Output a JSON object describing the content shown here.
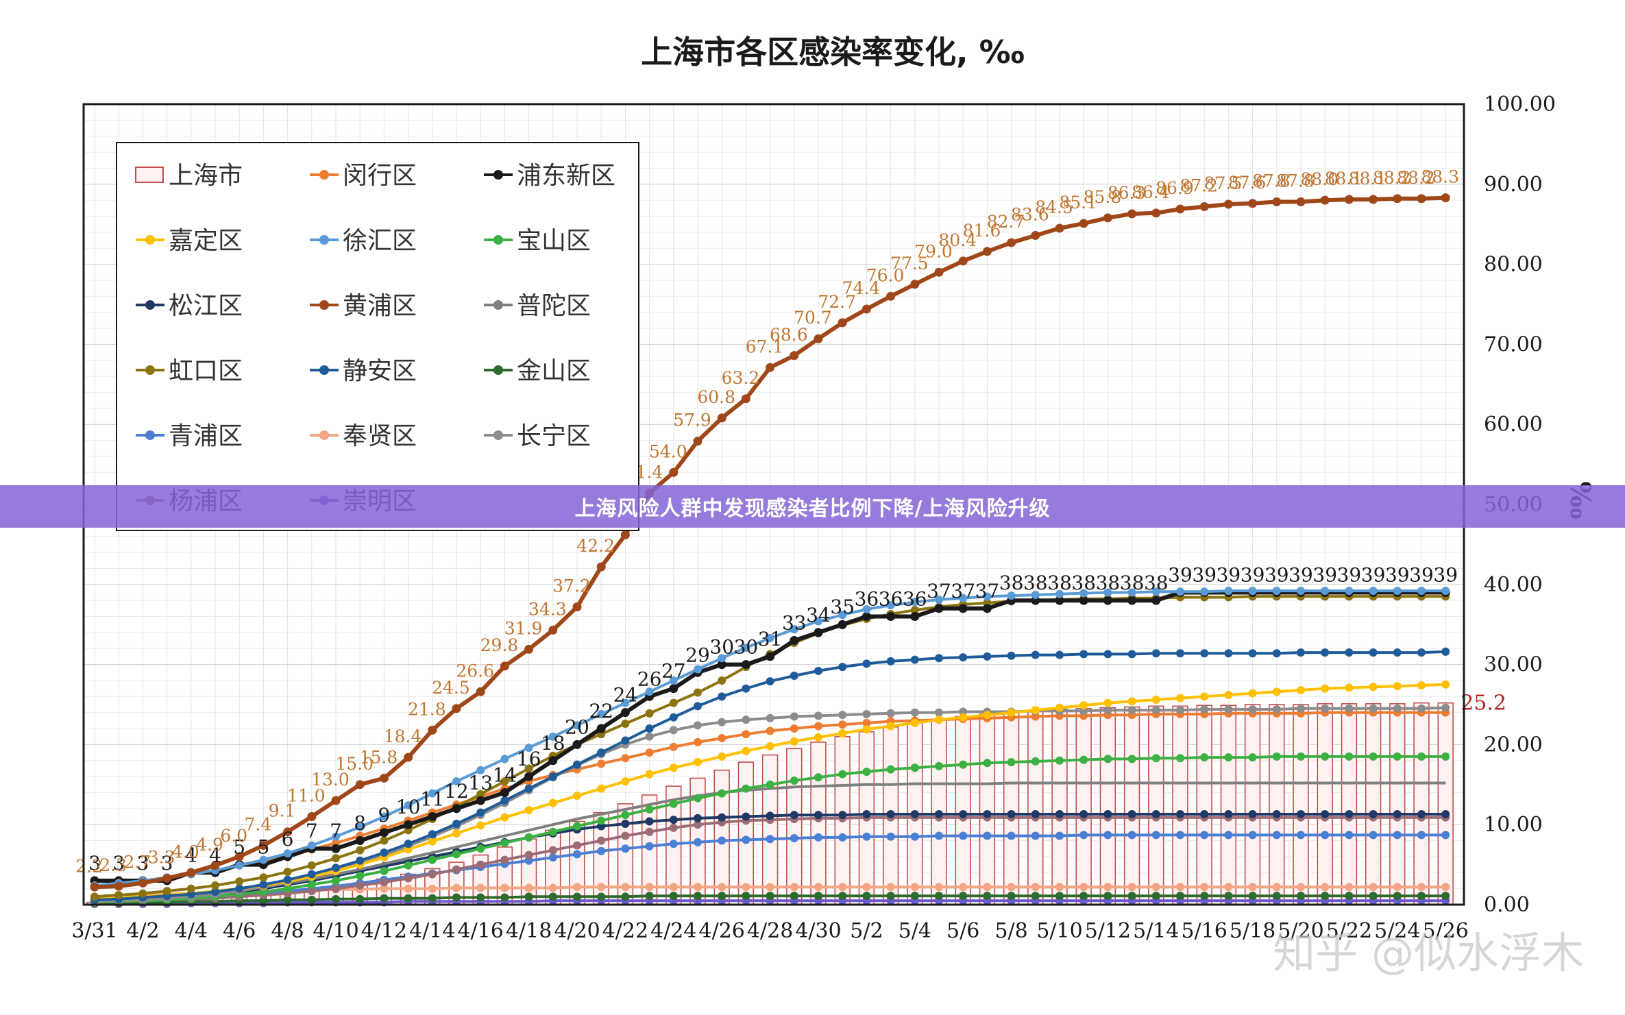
{
  "banner": {
    "text": "上海风险人群中发现感染者比例下降/上海风险升级"
  },
  "watermark": {
    "text": "知乎 @似水浮木"
  },
  "chart_data": {
    "type": "line",
    "title": "上海市各区感染率变化, ‰",
    "ylabel": "‰",
    "ylim": [
      0,
      100
    ],
    "yticks": [
      "0.00",
      "10.00",
      "20.00",
      "30.00",
      "40.00",
      "50.00",
      "60.00",
      "70.00",
      "80.00",
      "90.00",
      "100.00"
    ],
    "xtick_labels": [
      "3/31",
      "4/2",
      "4/4",
      "4/6",
      "4/8",
      "4/10",
      "4/12",
      "4/14",
      "4/16",
      "4/18",
      "4/20",
      "4/22",
      "4/24",
      "4/26",
      "4/28",
      "4/30",
      "5/2",
      "5/4",
      "5/6",
      "5/8",
      "5/10",
      "5/12",
      "5/14",
      "5/16",
      "5/18",
      "5/20",
      "5/22",
      "5/24",
      "5/26"
    ],
    "grid": true,
    "legend_position": "top-left",
    "series": [
      {
        "name": "上海市",
        "kind": "bar",
        "color": "#c0504d",
        "values": [
          0.3,
          0.4,
          0.5,
          0.6,
          0.7,
          0.9,
          1.1,
          1.3,
          1.6,
          1.9,
          2.3,
          2.7,
          3.2,
          3.8,
          4.5,
          5.3,
          6.2,
          7.2,
          8.2,
          9.3,
          10.4,
          11.5,
          12.6,
          13.7,
          14.8,
          15.8,
          16.8,
          17.8,
          18.7,
          19.5,
          20.3,
          21.0,
          21.6,
          22.2,
          22.7,
          23.1,
          23.5,
          23.8,
          24.0,
          24.2,
          24.4,
          24.5,
          24.6,
          24.7,
          24.8,
          24.8,
          24.9,
          24.9,
          25.0,
          25.0,
          25.0,
          25.1,
          25.1,
          25.1,
          25.1,
          25.2,
          25.2
        ],
        "end_label": "25.2"
      },
      {
        "name": "闵行区",
        "kind": "line",
        "color": "#ed7d31",
        "values": [
          2.2,
          2.5,
          2.9,
          3.3,
          3.8,
          4.3,
          4.9,
          5.5,
          6.2,
          6.9,
          7.7,
          8.6,
          9.5,
          10.5,
          11.5,
          12.5,
          13.5,
          14.5,
          15.4,
          16.2,
          16.9,
          17.6,
          18.3,
          19.0,
          19.7,
          20.3,
          20.8,
          21.3,
          21.7,
          22.0,
          22.3,
          22.5,
          22.7,
          22.9,
          23.0,
          23.1,
          23.2,
          23.3,
          23.4,
          23.5,
          23.6,
          23.6,
          23.7,
          23.7,
          23.8,
          23.8,
          23.8,
          23.9,
          23.9,
          23.9,
          23.9,
          24.0,
          24.0,
          24.0,
          24.0,
          24.0,
          24.0
        ]
      },
      {
        "name": "浦东新区",
        "kind": "line",
        "color": "#1a1a1a",
        "values": [
          3,
          3,
          3,
          3,
          4,
          4,
          5,
          5,
          6,
          7,
          7,
          8,
          9,
          10,
          11,
          12,
          13,
          14,
          16,
          18,
          20,
          22,
          24,
          26,
          27,
          29,
          30,
          30,
          31,
          33,
          34,
          35,
          36,
          36,
          36,
          37,
          37,
          37,
          38,
          38,
          38,
          38,
          38,
          38,
          38,
          39,
          39,
          39,
          39,
          39,
          39,
          39,
          39,
          39,
          39,
          39,
          39
        ],
        "point_labels": [
          "3",
          "3",
          "3",
          "3",
          "4",
          "4",
          "5",
          "5",
          "6",
          "7",
          "7",
          "8",
          "9",
          "10",
          "11",
          "12",
          "13",
          "14",
          "16",
          "18",
          "20",
          "22",
          "24",
          "26",
          "27",
          "29",
          "30",
          "30",
          "31",
          "33",
          "34",
          "35",
          "36",
          "36",
          "36",
          "37",
          "37",
          "37",
          "38",
          "38",
          "38",
          "38",
          "38",
          "38",
          "38",
          "39",
          "39",
          "39",
          "39",
          "39",
          "39",
          "39",
          "39",
          "39",
          "39",
          "39",
          "39"
        ]
      },
      {
        "name": "嘉定区",
        "kind": "line",
        "color": "#ffc000",
        "values": [
          0.8,
          0.9,
          1.0,
          1.2,
          1.4,
          1.7,
          2.0,
          2.4,
          2.9,
          3.5,
          4.2,
          5.0,
          5.9,
          6.9,
          7.9,
          8.9,
          9.9,
          10.9,
          11.8,
          12.7,
          13.6,
          14.5,
          15.4,
          16.3,
          17.1,
          17.8,
          18.5,
          19.2,
          19.8,
          20.4,
          20.9,
          21.4,
          21.9,
          22.3,
          22.7,
          23.1,
          23.4,
          23.7,
          24.0,
          24.3,
          24.6,
          24.9,
          25.2,
          25.4,
          25.6,
          25.8,
          26.0,
          26.2,
          26.4,
          26.6,
          26.8,
          27.0,
          27.1,
          27.2,
          27.3,
          27.4,
          27.5
        ]
      },
      {
        "name": "徐汇区",
        "kind": "line",
        "color": "#5b9bd5",
        "values": [
          2.4,
          2.7,
          3.0,
          3.4,
          3.8,
          4.3,
          4.9,
          5.6,
          6.4,
          7.4,
          8.5,
          9.7,
          11.0,
          12.4,
          13.9,
          15.4,
          16.8,
          18.2,
          19.6,
          21.0,
          22.4,
          23.8,
          25.2,
          26.6,
          28.0,
          29.4,
          30.8,
          32.1,
          33.3,
          34.4,
          35.4,
          36.2,
          36.9,
          37.4,
          37.8,
          38.1,
          38.3,
          38.5,
          38.6,
          38.7,
          38.8,
          38.9,
          39.0,
          39.0,
          39.1,
          39.1,
          39.1,
          39.2,
          39.2,
          39.2,
          39.2,
          39.2,
          39.2,
          39.2,
          39.2,
          39.2,
          39.2
        ]
      },
      {
        "name": "宝山区",
        "kind": "line",
        "color": "#3cb043",
        "values": [
          0.3,
          0.4,
          0.5,
          0.6,
          0.8,
          1.0,
          1.3,
          1.6,
          2.0,
          2.5,
          3.0,
          3.6,
          4.2,
          4.9,
          5.6,
          6.3,
          7.0,
          7.7,
          8.4,
          9.1,
          9.8,
          10.5,
          11.2,
          11.9,
          12.6,
          13.3,
          13.9,
          14.5,
          15.0,
          15.5,
          15.9,
          16.3,
          16.6,
          16.9,
          17.1,
          17.3,
          17.5,
          17.7,
          17.8,
          17.9,
          18.0,
          18.1,
          18.2,
          18.2,
          18.3,
          18.3,
          18.4,
          18.4,
          18.4,
          18.5,
          18.5,
          18.5,
          18.5,
          18.5,
          18.5,
          18.5,
          18.5
        ]
      },
      {
        "name": "松江区",
        "kind": "line",
        "color": "#1f3864",
        "values": [
          0.5,
          0.6,
          0.7,
          0.9,
          1.1,
          1.3,
          1.6,
          2.0,
          2.5,
          3.0,
          3.6,
          4.2,
          4.8,
          5.4,
          6.0,
          6.6,
          7.2,
          7.8,
          8.4,
          8.9,
          9.4,
          9.8,
          10.1,
          10.4,
          10.6,
          10.8,
          10.9,
          11.0,
          11.1,
          11.2,
          11.2,
          11.2,
          11.3,
          11.3,
          11.3,
          11.3,
          11.3,
          11.3,
          11.3,
          11.3,
          11.3,
          11.3,
          11.3,
          11.3,
          11.3,
          11.3,
          11.3,
          11.3,
          11.3,
          11.3,
          11.3,
          11.3,
          11.3,
          11.3,
          11.3,
          11.3,
          11.3
        ]
      },
      {
        "name": "黄浦区",
        "kind": "line",
        "color": "#a0471a",
        "values": [
          2.2,
          2.3,
          2.7,
          3.3,
          4.0,
          4.9,
          6.0,
          7.4,
          9.1,
          11.0,
          13.0,
          15.0,
          15.8,
          18.4,
          21.8,
          24.5,
          26.6,
          29.8,
          31.9,
          34.3,
          37.2,
          42.2,
          46.2,
          51.4,
          54.0,
          57.9,
          60.8,
          63.2,
          67.1,
          68.6,
          70.7,
          72.7,
          74.4,
          76.0,
          77.5,
          79.0,
          80.4,
          81.6,
          82.7,
          83.6,
          84.5,
          85.1,
          85.8,
          86.3,
          86.4,
          86.9,
          87.2,
          87.5,
          87.6,
          87.8,
          87.8,
          88.0,
          88.1,
          88.1,
          88.2,
          88.2,
          88.3
        ],
        "point_labels": [
          "2.2",
          "2.3",
          "2.7",
          "3.3",
          "4.0",
          "4.9",
          "6.0",
          "7.4",
          "9.1",
          "11.0",
          "13.0",
          "15.0",
          "15.8",
          "18.4",
          "21.8",
          "24.5",
          "26.6",
          "29.8",
          "31.9",
          "34.3",
          "37.2",
          "42.2",
          "46.2",
          "51.4",
          "54.0",
          "57.9",
          "60.8",
          "63.2",
          "67.1",
          "68.6",
          "70.7",
          "72.7",
          "74.4",
          "76.0",
          "77.5",
          "79.0",
          "80.4",
          "81.6",
          "82.7",
          "83.6",
          "84.5",
          "85.1",
          "85.8",
          "86.3",
          "86.4",
          "86.9",
          "87.2",
          "87.5",
          "87.6",
          "87.8",
          "87.8",
          "88.0",
          "88.1",
          "88.1",
          "88.2",
          "88.2",
          "88.3"
        ]
      },
      {
        "name": "普陀区",
        "kind": "line",
        "color": "#7f7f7f",
        "values": [
          0.5,
          0.6,
          0.8,
          1.0,
          1.2,
          1.5,
          1.8,
          2.2,
          2.7,
          3.2,
          3.8,
          4.4,
          5.1,
          5.8,
          6.5,
          7.2,
          7.9,
          8.6,
          9.3,
          10.0,
          10.7,
          11.3,
          11.9,
          12.5,
          13.1,
          13.6,
          14.0,
          14.3,
          14.5,
          14.7,
          14.8,
          14.9,
          15.0,
          15.0,
          15.1,
          15.1,
          15.1,
          15.1,
          15.2,
          15.2,
          15.2,
          15.2,
          15.2,
          15.2,
          15.2,
          15.2,
          15.2,
          15.2,
          15.2,
          15.2,
          15.2,
          15.2,
          15.2,
          15.2,
          15.2,
          15.2,
          15.2
        ]
      },
      {
        "name": "虹口区",
        "kind": "line",
        "color": "#8b7410",
        "values": [
          1.0,
          1.2,
          1.4,
          1.7,
          2.0,
          2.4,
          2.9,
          3.4,
          4.1,
          4.9,
          5.8,
          6.8,
          8.0,
          9.3,
          10.7,
          12.2,
          13.8,
          15.4,
          17.0,
          18.6,
          20.0,
          21.3,
          22.6,
          23.9,
          25.2,
          26.5,
          28.0,
          29.7,
          31.3,
          32.7,
          33.9,
          34.9,
          35.7,
          36.3,
          36.8,
          37.2,
          37.5,
          37.7,
          37.9,
          38.0,
          38.1,
          38.2,
          38.2,
          38.3,
          38.3,
          38.4,
          38.4,
          38.4,
          38.5,
          38.5,
          38.5,
          38.5,
          38.5,
          38.5,
          38.5,
          38.5,
          38.5
        ]
      },
      {
        "name": "静安区",
        "kind": "line",
        "color": "#1f5b99",
        "values": [
          0.6,
          0.7,
          0.9,
          1.1,
          1.3,
          1.6,
          2.0,
          2.5,
          3.1,
          3.8,
          4.6,
          5.5,
          6.5,
          7.6,
          8.8,
          10.1,
          11.5,
          13.0,
          14.5,
          16.0,
          17.5,
          19.0,
          20.5,
          22.0,
          23.4,
          24.8,
          26.0,
          27.0,
          27.9,
          28.6,
          29.2,
          29.7,
          30.1,
          30.4,
          30.6,
          30.8,
          30.9,
          31.0,
          31.1,
          31.2,
          31.2,
          31.3,
          31.3,
          31.3,
          31.4,
          31.4,
          31.4,
          31.4,
          31.4,
          31.4,
          31.5,
          31.5,
          31.5,
          31.5,
          31.5,
          31.5,
          31.6
        ]
      },
      {
        "name": "金山区",
        "kind": "line",
        "color": "#2e6b2e",
        "values": [
          0.2,
          0.2,
          0.3,
          0.3,
          0.4,
          0.4,
          0.5,
          0.5,
          0.6,
          0.6,
          0.7,
          0.7,
          0.8,
          0.8,
          0.8,
          0.9,
          0.9,
          0.9,
          1.0,
          1.0,
          1.0,
          1.0,
          1.0,
          1.1,
          1.1,
          1.1,
          1.1,
          1.1,
          1.1,
          1.1,
          1.1,
          1.1,
          1.1,
          1.1,
          1.1,
          1.1,
          1.1,
          1.1,
          1.1,
          1.1,
          1.1,
          1.1,
          1.1,
          1.1,
          1.1,
          1.1,
          1.1,
          1.1,
          1.1,
          1.1,
          1.1,
          1.1,
          1.1,
          1.1,
          1.1,
          1.1,
          1.1
        ]
      },
      {
        "name": "青浦区",
        "kind": "line",
        "color": "#4a7fd4",
        "values": [
          0.4,
          0.5,
          0.6,
          0.7,
          0.8,
          1.0,
          1.2,
          1.4,
          1.7,
          2.0,
          2.3,
          2.7,
          3.1,
          3.5,
          3.9,
          4.3,
          4.7,
          5.1,
          5.5,
          5.9,
          6.3,
          6.7,
          7.0,
          7.3,
          7.6,
          7.8,
          8.0,
          8.1,
          8.2,
          8.3,
          8.4,
          8.4,
          8.5,
          8.5,
          8.5,
          8.6,
          8.6,
          8.6,
          8.6,
          8.6,
          8.6,
          8.7,
          8.7,
          8.7,
          8.7,
          8.7,
          8.7,
          8.7,
          8.7,
          8.7,
          8.7,
          8.7,
          8.7,
          8.7,
          8.7,
          8.7,
          8.7
        ]
      },
      {
        "name": "奉贤区",
        "kind": "line",
        "color": "#f4a582",
        "values": [
          1.0,
          1.1,
          1.2,
          1.3,
          1.4,
          1.5,
          1.6,
          1.7,
          1.8,
          1.8,
          1.9,
          1.9,
          2.0,
          2.0,
          2.0,
          2.1,
          2.1,
          2.1,
          2.1,
          2.1,
          2.2,
          2.2,
          2.2,
          2.2,
          2.2,
          2.2,
          2.2,
          2.2,
          2.2,
          2.2,
          2.2,
          2.2,
          2.2,
          2.2,
          2.2,
          2.2,
          2.2,
          2.2,
          2.2,
          2.2,
          2.2,
          2.2,
          2.2,
          2.2,
          2.2,
          2.2,
          2.2,
          2.2,
          2.2,
          2.2,
          2.2,
          2.2,
          2.2,
          2.2,
          2.2,
          2.2,
          2.2
        ]
      },
      {
        "name": "长宁区",
        "kind": "line",
        "color": "#8c8c8c",
        "values": [
          0.4,
          0.5,
          0.6,
          0.8,
          1.0,
          1.3,
          1.7,
          2.2,
          2.8,
          3.5,
          4.3,
          5.2,
          6.2,
          7.3,
          8.5,
          9.8,
          11.2,
          12.7,
          14.3,
          15.9,
          17.4,
          18.8,
          20.0,
          21.0,
          21.8,
          22.4,
          22.8,
          23.1,
          23.3,
          23.5,
          23.6,
          23.7,
          23.8,
          23.9,
          24.0,
          24.0,
          24.1,
          24.1,
          24.1,
          24.2,
          24.2,
          24.2,
          24.3,
          24.3,
          24.3,
          24.3,
          24.4,
          24.4,
          24.4,
          24.4,
          24.5,
          24.5,
          24.5,
          24.5,
          24.5,
          24.5,
          24.6
        ]
      },
      {
        "name": "杨浦区",
        "kind": "line",
        "color": "#9c6b74",
        "values": [
          0.3,
          0.4,
          0.5,
          0.6,
          0.7,
          0.8,
          1.0,
          1.2,
          1.4,
          1.7,
          2.0,
          2.4,
          2.8,
          3.3,
          3.8,
          4.4,
          5.0,
          5.6,
          6.2,
          6.8,
          7.4,
          8.0,
          8.6,
          9.1,
          9.6,
          10.0,
          10.3,
          10.5,
          10.6,
          10.7,
          10.8,
          10.8,
          10.9,
          10.9,
          10.9,
          10.9,
          10.9,
          10.9,
          10.9,
          10.9,
          10.9,
          10.9,
          10.9,
          10.9,
          10.9,
          10.9,
          10.9,
          10.9,
          10.9,
          10.9,
          10.9,
          10.9,
          10.9,
          10.9,
          10.9,
          10.9,
          10.9
        ]
      },
      {
        "name": "崇明区",
        "kind": "line",
        "color": "#6a5acd",
        "values": [
          0.1,
          0.1,
          0.1,
          0.1,
          0.2,
          0.2,
          0.2,
          0.2,
          0.3,
          0.3,
          0.3,
          0.3,
          0.3,
          0.4,
          0.4,
          0.4,
          0.4,
          0.4,
          0.4,
          0.5,
          0.5,
          0.5,
          0.5,
          0.5,
          0.5,
          0.5,
          0.5,
          0.5,
          0.5,
          0.5,
          0.5,
          0.5,
          0.5,
          0.5,
          0.5,
          0.5,
          0.5,
          0.5,
          0.5,
          0.5,
          0.5,
          0.5,
          0.5,
          0.5,
          0.5,
          0.5,
          0.5,
          0.5,
          0.5,
          0.5,
          0.5,
          0.5,
          0.5,
          0.5,
          0.5,
          0.5,
          0.5
        ]
      }
    ]
  }
}
